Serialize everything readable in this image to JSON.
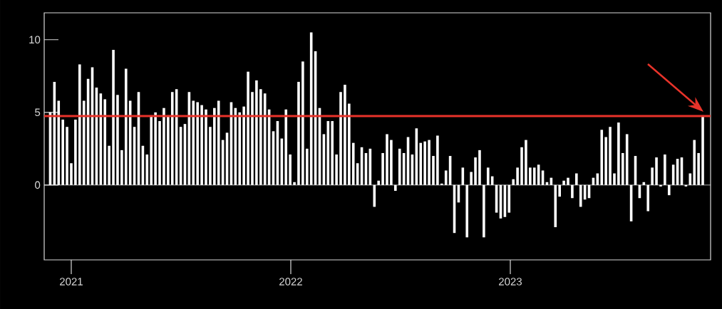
{
  "chart_data": {
    "type": "bar",
    "x": [
      "2020-11-27",
      "2020-12-04",
      "2020-12-11",
      "2020-12-18",
      "2020-12-25",
      "2021-01-01",
      "2021-01-08",
      "2021-01-15",
      "2021-01-22",
      "2021-01-29",
      "2021-02-05",
      "2021-02-12",
      "2021-02-19",
      "2021-02-26",
      "2021-03-05",
      "2021-03-12",
      "2021-03-19",
      "2021-03-26",
      "2021-04-02",
      "2021-04-09",
      "2021-04-16",
      "2021-04-23",
      "2021-04-30",
      "2021-05-07",
      "2021-05-14",
      "2021-05-21",
      "2021-05-28",
      "2021-06-04",
      "2021-06-11",
      "2021-06-18",
      "2021-06-25",
      "2021-07-02",
      "2021-07-09",
      "2021-07-16",
      "2021-07-23",
      "2021-07-30",
      "2021-08-06",
      "2021-08-13",
      "2021-08-20",
      "2021-08-27",
      "2021-09-03",
      "2021-09-10",
      "2021-09-17",
      "2021-09-24",
      "2021-10-01",
      "2021-10-08",
      "2021-10-15",
      "2021-10-22",
      "2021-10-29",
      "2021-11-05",
      "2021-11-12",
      "2021-11-19",
      "2021-11-26",
      "2021-12-03",
      "2021-12-10",
      "2021-12-17",
      "2021-12-24",
      "2021-12-31",
      "2022-01-07",
      "2022-01-14",
      "2022-01-21",
      "2022-01-28",
      "2022-02-04",
      "2022-02-11",
      "2022-02-18",
      "2022-02-25",
      "2022-03-04",
      "2022-03-11",
      "2022-03-18",
      "2022-03-25",
      "2022-04-01",
      "2022-04-08",
      "2022-04-15",
      "2022-04-22",
      "2022-04-29",
      "2022-05-06",
      "2022-05-13",
      "2022-05-20",
      "2022-05-27",
      "2022-06-03",
      "2022-06-10",
      "2022-06-17",
      "2022-06-24",
      "2022-07-01",
      "2022-07-08",
      "2022-07-15",
      "2022-07-22",
      "2022-07-29",
      "2022-08-05",
      "2022-08-12",
      "2022-08-19",
      "2022-08-26",
      "2022-09-02",
      "2022-09-09",
      "2022-09-16",
      "2022-09-23",
      "2022-09-30",
      "2022-10-07",
      "2022-10-14",
      "2022-10-21",
      "2022-10-28",
      "2022-11-04",
      "2022-11-11",
      "2022-11-18",
      "2022-11-25",
      "2022-12-02",
      "2022-12-09",
      "2022-12-16",
      "2022-12-23",
      "2022-12-30",
      "2023-01-06",
      "2023-01-13",
      "2023-01-20",
      "2023-01-27",
      "2023-02-03",
      "2023-02-10",
      "2023-02-17",
      "2023-02-24",
      "2023-03-03",
      "2023-03-10",
      "2023-03-17",
      "2023-03-24",
      "2023-03-31",
      "2023-04-07",
      "2023-04-14",
      "2023-04-21",
      "2023-04-28",
      "2023-05-05",
      "2023-05-12",
      "2023-05-19",
      "2023-05-26",
      "2023-06-02",
      "2023-06-09",
      "2023-06-16",
      "2023-06-23",
      "2023-06-30",
      "2023-07-07",
      "2023-07-14",
      "2023-07-21",
      "2023-07-28",
      "2023-08-04",
      "2023-08-11",
      "2023-08-18",
      "2023-08-25",
      "2023-09-01",
      "2023-09-08",
      "2023-09-15",
      "2023-09-22",
      "2023-09-29",
      "2023-10-06",
      "2023-10-13",
      "2023-10-20",
      "2023-10-27",
      "2023-11-03",
      "2023-11-10",
      "2023-11-17"
    ],
    "values": [
      5.0,
      7.1,
      5.8,
      4.5,
      4.0,
      1.5,
      4.5,
      8.3,
      5.8,
      7.3,
      8.1,
      6.7,
      6.3,
      5.9,
      2.7,
      9.3,
      6.2,
      2.4,
      8.0,
      5.8,
      4.0,
      6.4,
      2.7,
      2.1,
      4.8,
      5.0,
      4.4,
      5.3,
      4.8,
      6.4,
      6.6,
      4.0,
      4.2,
      6.4,
      5.8,
      5.7,
      5.5,
      5.2,
      4.0,
      5.3,
      5.8,
      3.1,
      3.6,
      5.7,
      5.3,
      5.0,
      5.4,
      7.8,
      6.4,
      7.2,
      6.6,
      6.3,
      5.2,
      3.7,
      4.4,
      3.2,
      5.2,
      2.1,
      0.2,
      7.1,
      8.5,
      2.5,
      10.5,
      9.2,
      5.3,
      3.5,
      4.4,
      4.4,
      2.1,
      6.4,
      6.9,
      5.6,
      2.9,
      1.5,
      2.6,
      2.2,
      2.5,
      -1.5,
      0.3,
      2.2,
      3.5,
      3.1,
      -0.4,
      2.5,
      2.2,
      3.3,
      2.1,
      3.9,
      2.9,
      3.0,
      3.1,
      2.0,
      3.4,
      0.1,
      1.0,
      2.0,
      -3.3,
      -1.2,
      1.2,
      -3.6,
      0.9,
      1.9,
      2.4,
      -3.6,
      1.2,
      0.6,
      -1.9,
      -2.3,
      -2.2,
      -1.9,
      0.4,
      1.2,
      2.6,
      3.1,
      1.2,
      1.2,
      1.4,
      1.0,
      0.2,
      0.5,
      -2.9,
      -0.8,
      0.3,
      0.5,
      -0.9,
      0.8,
      -1.5,
      -1.0,
      -0.9,
      0.5,
      0.8,
      3.8,
      3.3,
      4.0,
      0.8,
      4.3,
      2.2,
      3.5,
      -2.5,
      2.0,
      -0.9,
      0.2,
      -1.8,
      1.2,
      1.9,
      -0.1,
      2.1,
      -0.7,
      1.4,
      1.8,
      1.9,
      -0.1,
      0.8,
      3.1,
      2.2,
      4.8
    ],
    "color": "#ffffff",
    "xlim": [
      "2020-11-17",
      "2023-11-30"
    ],
    "xticks": [
      {
        "value": "2021-01-01",
        "label": "2021"
      },
      {
        "value": "2022-01-01",
        "label": "2022"
      },
      {
        "value": "2023-01-01",
        "label": "2023"
      }
    ],
    "ylim": [
      -5.15,
      11.85
    ],
    "yticks": [
      0,
      5,
      10
    ],
    "ref_lines": [
      {
        "axis": "y",
        "value": 4.75,
        "color": "#e8332a"
      }
    ]
  }
}
